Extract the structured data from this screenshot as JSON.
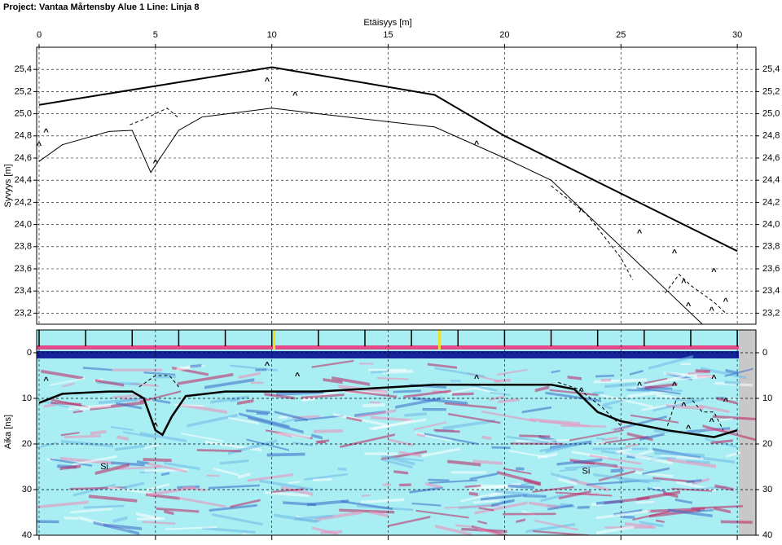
{
  "title": "Project: Vantaa Mårtensby Alue 1  Line: Linja 8",
  "chart_data": [
    {
      "type": "line",
      "xlabel": "Etäisyys [m]",
      "ylabel": "Syvyys [m]",
      "xlim": [
        0,
        31
      ],
      "xticks": [
        0,
        5,
        10,
        15,
        20,
        25,
        30
      ],
      "ylim": [
        23.1,
        25.6
      ],
      "yticks": [
        {
          "value": 23.2,
          "label": "23,2"
        },
        {
          "value": 23.4,
          "label": "23,4"
        },
        {
          "value": 23.6,
          "label": "23,6"
        },
        {
          "value": 23.8,
          "label": "23,8"
        },
        {
          "value": 24.0,
          "label": "24,0"
        },
        {
          "value": 24.2,
          "label": "24,2"
        },
        {
          "value": 24.4,
          "label": "24,4"
        },
        {
          "value": 24.6,
          "label": "24,6"
        },
        {
          "value": 24.8,
          "label": "24,8"
        },
        {
          "value": 25.0,
          "label": "25,0"
        },
        {
          "value": 25.2,
          "label": "25,2"
        },
        {
          "value": 25.4,
          "label": "25,4"
        }
      ],
      "grid": true,
      "series": [
        {
          "color": "#000000",
          "width": 2,
          "style": "solid",
          "x": [
            0,
            10,
            17,
            20,
            30
          ],
          "values": [
            25.08,
            25.42,
            25.17,
            24.8,
            23.76
          ]
        },
        {
          "color": "#000000",
          "width": 1,
          "style": "solid",
          "x": [
            0,
            1,
            3,
            4,
            4.8,
            5.2,
            6,
            7,
            10,
            12,
            17,
            20,
            22,
            26,
            27,
            28.5
          ],
          "values": [
            24.57,
            24.72,
            24.84,
            24.85,
            24.47,
            24.6,
            24.85,
            24.97,
            25.05,
            25.0,
            24.88,
            24.6,
            24.4,
            23.6,
            23.4,
            23.1
          ]
        },
        {
          "color": "#000000",
          "width": 1,
          "style": "dashed",
          "x": [
            3.9,
            4.5,
            5.5,
            6
          ],
          "values": [
            24.9,
            24.95,
            25.05,
            24.96
          ]
        },
        {
          "color": "#000000",
          "width": 1,
          "style": "dashed",
          "x": [
            22,
            23.5,
            25,
            25.5
          ],
          "values": [
            24.35,
            24.1,
            23.7,
            23.5
          ]
        },
        {
          "color": "#000000",
          "width": 1,
          "style": "dashed",
          "x": [
            26.9,
            27.5,
            28,
            29,
            29.5
          ],
          "values": [
            23.38,
            23.55,
            23.45,
            23.3,
            23.2
          ]
        }
      ],
      "markers": {
        "symbol": "^",
        "x": [
          0,
          0.3,
          5,
          9.8,
          11,
          18.8,
          23.3,
          25.8,
          27.3,
          27.7,
          29,
          27.9,
          28.9,
          29.5
        ],
        "values": [
          24.74,
          24.86,
          24.58,
          25.32,
          25.19,
          24.75,
          24.14,
          23.95,
          23.77,
          23.5,
          23.6,
          23.29,
          23.25,
          23.33
        ]
      }
    },
    {
      "type": "radargram",
      "ylabel": "Aika [ns]",
      "xlim": [
        0,
        31
      ],
      "ylim": [
        -5,
        40
      ],
      "yticks": [
        0,
        10,
        20,
        30,
        40
      ],
      "grid": true,
      "fiducials": [
        0,
        2,
        4,
        6,
        8,
        10,
        12,
        14,
        16,
        18,
        20,
        22,
        24,
        26,
        28,
        30
      ],
      "events": [
        10.1,
        17.2
      ],
      "series": [
        {
          "color": "#000000",
          "width": 2.5,
          "style": "solid",
          "x": [
            0,
            1,
            3,
            4,
            4.5,
            5,
            5.3,
            5.7,
            6.3,
            8,
            12,
            17,
            22,
            23,
            24,
            25,
            27,
            29,
            30
          ],
          "values": [
            11,
            9,
            8.5,
            8.5,
            10,
            17,
            18,
            14,
            9.5,
            8.5,
            8.5,
            7,
            7,
            8,
            13,
            15,
            17,
            18.5,
            17
          ]
        },
        {
          "color": "#000000",
          "width": 1,
          "style": "dashed",
          "x": [
            4.3,
            5,
            5.6,
            6
          ],
          "values": [
            7.5,
            5,
            5,
            7.5
          ]
        },
        {
          "color": "#000000",
          "width": 1,
          "style": "dashed",
          "x": [
            22.3,
            23.2,
            24.2,
            25
          ],
          "values": [
            6.5,
            8,
            12,
            16
          ]
        },
        {
          "color": "#000000",
          "width": 1,
          "style": "dashed",
          "x": [
            27,
            27.4,
            28,
            28.5,
            29,
            29.4
          ],
          "values": [
            16,
            10,
            10,
            13,
            13,
            17
          ]
        }
      ],
      "markers": {
        "symbol": "^",
        "x": [
          0.3,
          9.8,
          11.1,
          18.8,
          5,
          23.3,
          25.8,
          27.3,
          27.7,
          29,
          27.9,
          28.9,
          29.5
        ],
        "values": [
          5.5,
          2.2,
          4.5,
          5,
          15.5,
          7.8,
          6.5,
          6.5,
          11,
          5,
          16,
          14.5,
          10
        ]
      },
      "annotations": [
        {
          "text": "Si",
          "x": 2.8,
          "y": 25
        },
        {
          "text": "Si",
          "x": 23.5,
          "y": 26
        }
      ]
    }
  ]
}
